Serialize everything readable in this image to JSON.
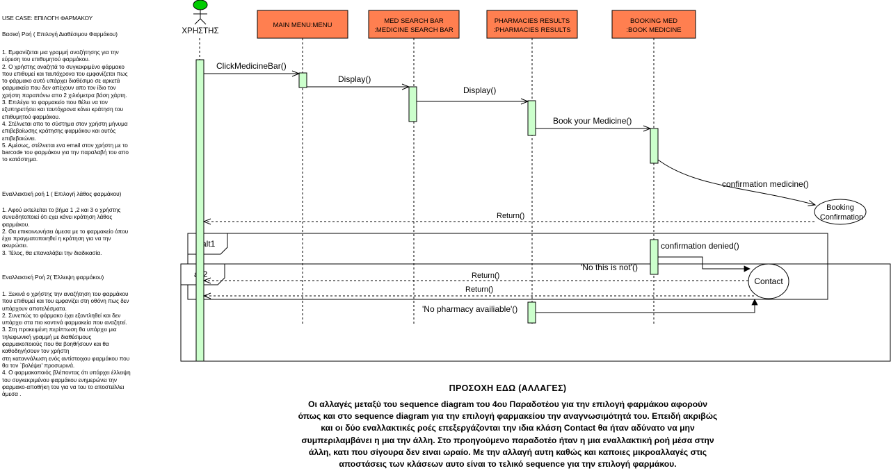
{
  "sidebar": {
    "title": "USE CASE: ΕΠΙΛΟΓΗ ΦΑΡΜΑΚΟΥ",
    "basic_flow": {
      "heading": "Βασική Ροή ( Επιλογή Διαθέσιμου Φαρμάκου)",
      "lines": [
        "1. Εμφανίζεται μια γραμμή αναζήτησης για την",
        "εύρεση του επιθυμητού φαρμάκου.",
        "2. Ο χρήστης αναζητά το συγκεκριμένο φάρμακο",
        "που επιθυμεί και ταυτόχρονα του εμφανίζεται πως",
        "το φάρμακο αυτό υπάρχει διαθέσιμο σε αρκετά",
        "φαρμακεία που δεν απέχουν απο τον ίδιο τον",
        "χρήστη παραπάνω απο 2 χιλιόμετρα βάση χάρτη.",
        "3. Επιλέγει το φαρμακείο που θέλει να τον",
        "εξυπηρετήσει και ταυτόχρονα κάνει κράτηση του",
        "επιθυμητού φαρμάκου.",
        "4. Στέλνεται απο το σύστημα στον χρήστη μήνυμα",
        "επιβεβαίωσης κράτησης φαρμάκου και αυτός",
        "επιβεβαιώνει.",
        "5. Αμέσως, στέλνεται ενα email στον χρήστη με το",
        "barcode του φαρμάκου για την παραλαβή του απο",
        "το κατάστημα."
      ]
    },
    "alt_flow_1": {
      "heading": "Εναλλακτική ροή 1 ( Επιλογή λάθος φαρμάκου)",
      "lines": [
        "1. Αφού εκτελείται το βήμα 1 ,2 και 3 ο χρήστης",
        "συνειδητοποιεί ότι εχει κάνει κράτηση λάθος",
        "φαρμάκου.",
        "2. Θα επικοινωνήσει άμεσα με το φαρμακείο όπου",
        "έχει πραγματοποιηθεί η κράτηση για να την",
        "ακυρώσει.",
        "3. Τέλος, θα επαναλάβει την διαδικασία."
      ]
    },
    "alt_flow_2": {
      "heading": "Εναλλακτική Ροή 2( Έλλειψη φαρμάκου)",
      "lines": [
        "1. Ξεκινά ο χρήστης την αναζήτηση του φαρμάκου",
        "που επιθυμεί και του εμφανίζει στη οθόνη πως δεν",
        "υπάρχουν αποτελέσματα.",
        "2. Συνεπώς το φάρμακο έχει εξαντληθεί και δεν",
        "υπάρχει στα πιο κοντινά φαρμακεία που αναζητεί.",
        "3. Στη προκειμένη περίπτωση θα υπάρχει μια",
        "τηλεφωνική γραμμή με διαθέσιμους",
        "φαρμακοποιούς που θα βοηθήσουν και θα",
        "καθοδηγήσουν τον χρήστη",
        "στη καταννάλωση ενός αντίστοιχου φαρμάκου που",
        "θα τον `βολέψει' προσωρινά.",
        "4. Ο φαρμακοποιός βλέποντας ότι υπάρχει έλλειψη",
        "του συγκεκριμένου φαρμάκου ενημερώνει την",
        "φαρμακο-αποθήκη του για να του το αποστείλλει",
        "άμεσα ."
      ]
    }
  },
  "diagram": {
    "actor": {
      "label": "ΧΡΗΣΤΗΣ"
    },
    "lifelines": [
      {
        "id": "menu",
        "line1": "MAIN MENU:MENU",
        "line2": ""
      },
      {
        "id": "search",
        "line1": "MED SEARCH BAR",
        "line2": ":MEDICINE SEARCH BAR"
      },
      {
        "id": "pharm",
        "line1": "PHARMACIES RESULTS",
        "line2": ":PHARMACIES RESULTS"
      },
      {
        "id": "book",
        "line1": "BOOKING MED",
        "line2": ":BOOK MEDICINE"
      }
    ],
    "messages": {
      "click": "ClickMedicineBar()",
      "display1": "Display()",
      "display2": "Display()",
      "book": "Book your Medicine()",
      "confirmation": "confirmation medicine()",
      "return1": "Return()",
      "denied": "confirmation denied()",
      "not_it": "'No this is not'()",
      "return2": "Return()",
      "return3": "Return()",
      "no_pharmacy": "'No pharmacy availiable'()"
    },
    "fragments": {
      "alt1": "alt1",
      "alt2": "alt2"
    },
    "nodes": {
      "booking_line1": "Booking",
      "booking_line2": "Confirmation",
      "contact": "Contact"
    }
  },
  "note": {
    "title": "ΠΡΟΣΟΧΗ ΕΔΩ  (ΑΛΛΑΓΕΣ)",
    "lines": [
      "Οι αλλαγές μεταξύ του sequence diagram του 4ου Παραδοτέου για την επιλογή φαρμάκου αφορούν",
      "όπως και στο sequence diagram για την επιλογή φαρμακείου την αναγνωσιμότητά του. Επειδή ακριβώς",
      "και οι δύο εναλλακτικές ροές επεξεργάζονται την ιδια κλάση Contact θα ήταν αδύνατο να μην",
      "συμπεριλαμβάνει η μια την άλλη. Στο προηγούμενο παραδοτέο ήταν η μια εναλλακτική ροή μέσα στην",
      "άλλη, κατι που σίγουρα δεν ειναι ωραίο. Με την αλλαγή αυτη καθώς και καποιες μικροαλλαγές στις",
      "αποστάσεις των κλάσεων αυτο είναι το τελικό sequence για την επιλογή φαρμάκου."
    ]
  },
  "colors": {
    "header_fill": "#ff7f50",
    "activation_fill": "#ccffcc",
    "actor_head": "#00cc00"
  }
}
